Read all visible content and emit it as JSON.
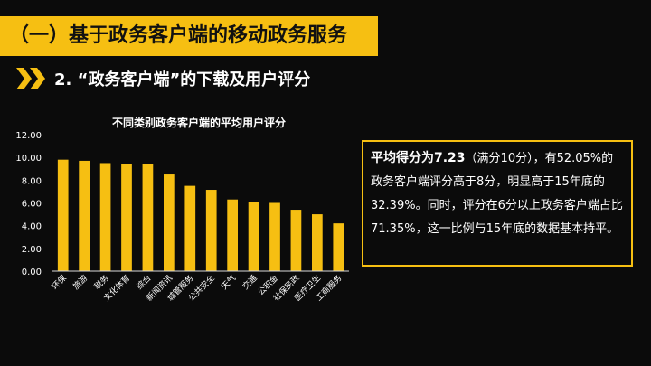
{
  "header": {
    "title": "（一）基于政务客户端的移动政务服务"
  },
  "subhead": {
    "text": "2. “政务客户端”的下载及用户评分"
  },
  "colors": {
    "accent": "#f6bf12",
    "bar": "#f6bf12",
    "background": "#0b0b0b"
  },
  "icons": {
    "subhead_icon": "double-chevron-right-icon"
  },
  "chart_data": {
    "type": "bar",
    "title": "不同类别政务客户端的平均用户评分",
    "categories": [
      "环保",
      "旅游",
      "税务",
      "文化体育",
      "综合",
      "新闻资讯",
      "城管服务",
      "公共安全",
      "天气",
      "交通",
      "公积金",
      "社保民政",
      "医疗卫生",
      "工商服务"
    ],
    "values": [
      9.8,
      9.7,
      9.5,
      9.45,
      9.4,
      8.5,
      7.5,
      7.15,
      6.3,
      6.1,
      6.0,
      5.4,
      5.0,
      4.2
    ],
    "yticks": [
      "0.00",
      "2.00",
      "4.00",
      "6.00",
      "8.00",
      "10.00",
      "12.00"
    ],
    "ylim": [
      0,
      12
    ],
    "grid": false
  },
  "textbox": {
    "lead": "平均得分为7.23",
    "body": "（满分10分），有52.05%的政务客户端评分高于8分，明显高于15年底的32.39%。同时，评分在6分以上政务客户端占比71.35%，这一比例与15年底的数据基本持平。"
  }
}
